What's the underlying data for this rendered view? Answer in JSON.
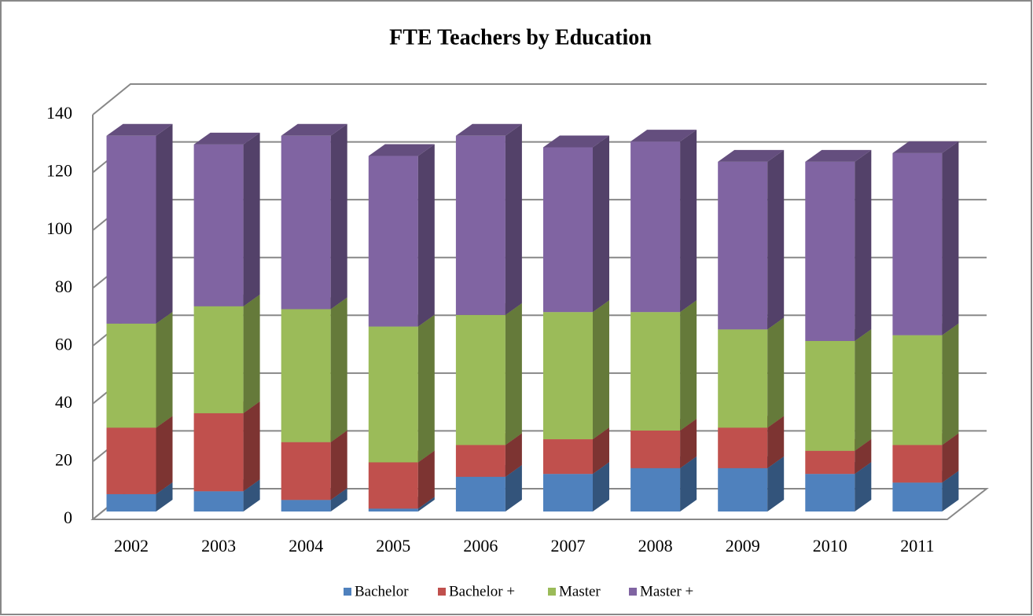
{
  "chart_data": {
    "type": "bar3d_stacked",
    "title": "FTE Teachers by Education",
    "categories": [
      "2002",
      "2003",
      "2004",
      "2005",
      "2006",
      "2007",
      "2008",
      "2009",
      "2010",
      "2011"
    ],
    "series": [
      {
        "name": "Bachelor",
        "color": "#4f81bd",
        "values": [
          6,
          7,
          4,
          1,
          12,
          13,
          15,
          15,
          13,
          10
        ]
      },
      {
        "name": "Bachelor +",
        "color": "#c0504d",
        "values": [
          23,
          27,
          20,
          16,
          11,
          12,
          13,
          14,
          8,
          13
        ]
      },
      {
        "name": "Master",
        "color": "#9bbb59",
        "values": [
          36,
          37,
          46,
          47,
          45,
          44,
          41,
          34,
          38,
          38
        ]
      },
      {
        "name": "Master +",
        "color": "#8064a2",
        "values": [
          65,
          56,
          60,
          59,
          62,
          57,
          59,
          58,
          62,
          63
        ]
      }
    ],
    "ylim": [
      0,
      140
    ],
    "yticks": [
      0,
      20,
      40,
      60,
      80,
      100,
      120,
      140
    ],
    "grid": true,
    "legend": "bottom"
  }
}
